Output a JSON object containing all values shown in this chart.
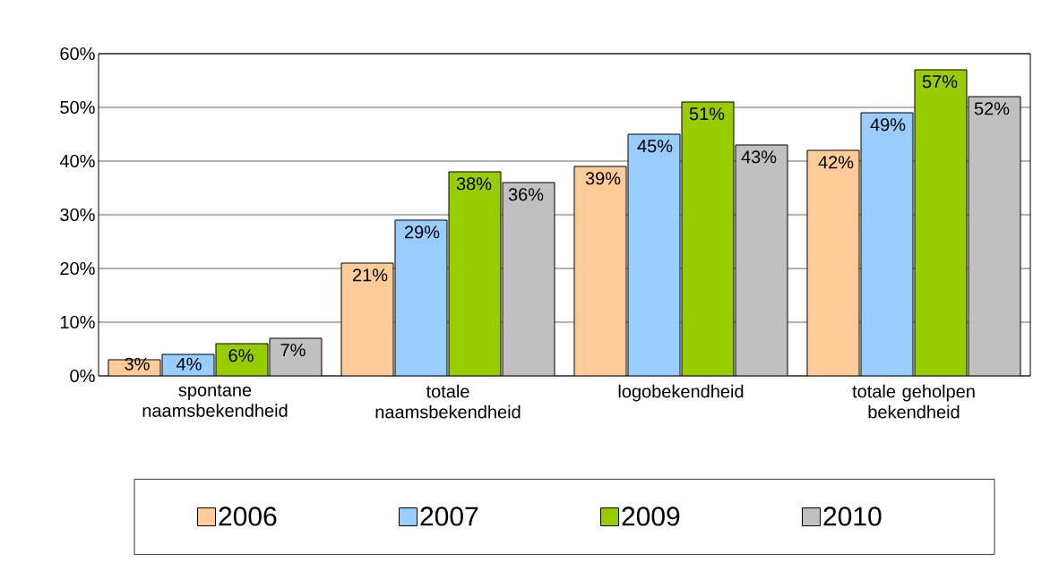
{
  "chart_data": {
    "type": "bar",
    "categories": [
      "spontane naamsbekendheid",
      "totale naamsbekendheid",
      "logobekendheid",
      "totale geholpen bekendheid"
    ],
    "series": [
      {
        "name": "2006",
        "color": "#ffcc99",
        "values": [
          3,
          21,
          39,
          42
        ],
        "value_labels": [
          "3%",
          "21%",
          "39%",
          "42%"
        ]
      },
      {
        "name": "2007",
        "color": "#99ccff",
        "values": [
          4,
          29,
          45,
          49
        ],
        "value_labels": [
          "4%",
          "29%",
          "45%",
          "49%"
        ]
      },
      {
        "name": "2009",
        "color": "#99cc00",
        "values": [
          6,
          38,
          51,
          57
        ],
        "value_labels": [
          "6%",
          "38%",
          "51%",
          "57%"
        ]
      },
      {
        "name": "2010",
        "color": "#c0c0c0",
        "values": [
          7,
          36,
          43,
          52
        ],
        "value_labels": [
          "7%",
          "36%",
          "43%",
          "52%"
        ]
      }
    ],
    "ylim": [
      0,
      60
    ],
    "yticks": [
      {
        "value": 0,
        "label": "0%"
      },
      {
        "value": 10,
        "label": "10%"
      },
      {
        "value": 20,
        "label": "20%"
      },
      {
        "value": 30,
        "label": "30%"
      },
      {
        "value": 40,
        "label": "40%"
      },
      {
        "value": 50,
        "label": "50%"
      },
      {
        "value": 60,
        "label": "60%"
      }
    ],
    "grid": "y",
    "legend": "bottom"
  }
}
